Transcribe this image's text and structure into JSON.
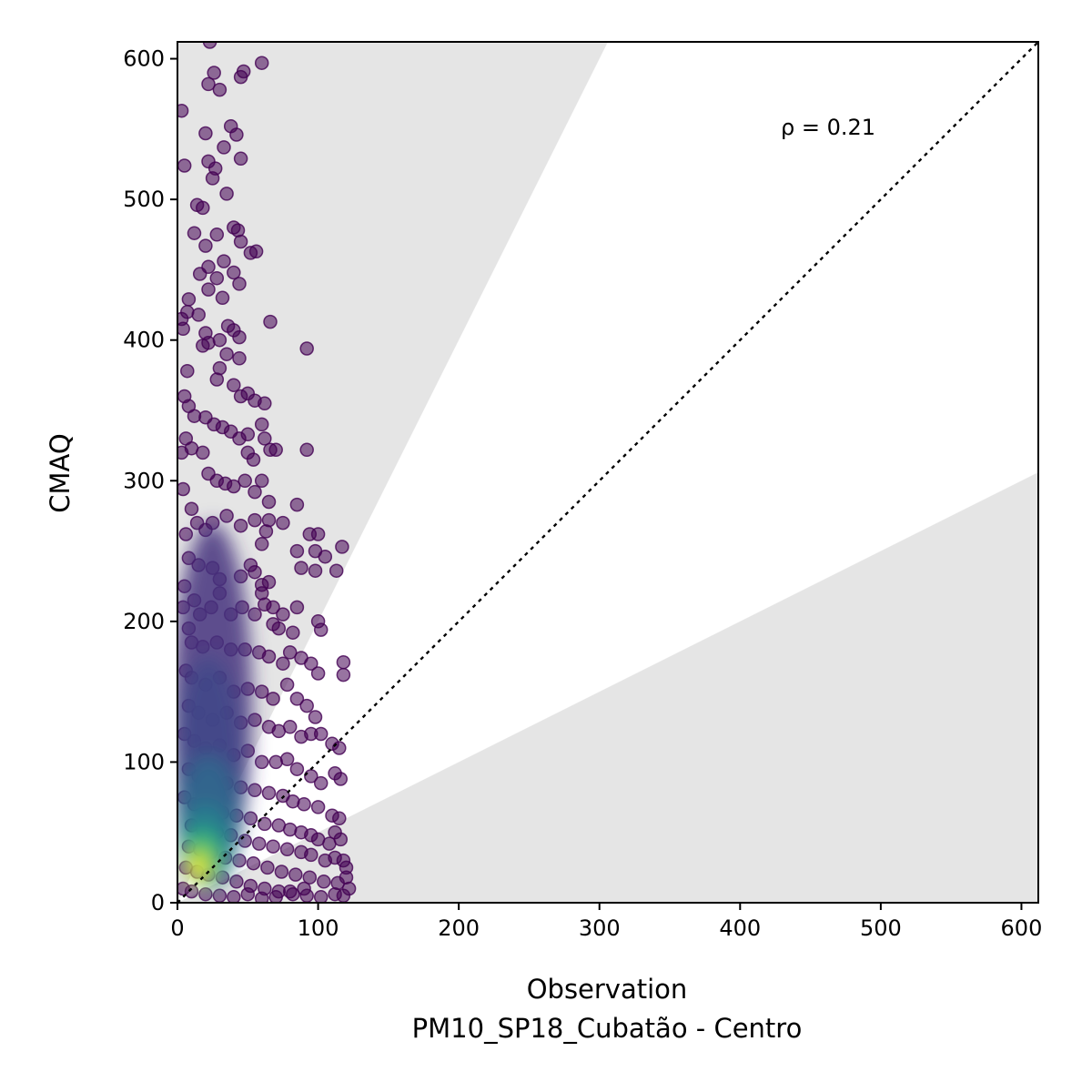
{
  "chart_data": {
    "type": "scatter",
    "title": "",
    "xlabel": "Observation",
    "xlabel_sub": "PM10_SP18_Cubatão - Centro",
    "ylabel": "CMAQ",
    "xlim": [
      0,
      612
    ],
    "ylim": [
      0,
      612
    ],
    "xticks": [
      0,
      100,
      200,
      300,
      400,
      500,
      600
    ],
    "yticks": [
      0,
      100,
      200,
      300,
      400,
      500,
      600
    ],
    "grid": false,
    "legend": "none",
    "annotation": "ρ = 0.21",
    "reference_line": {
      "type": "1:1",
      "style": "dotted",
      "color": "#000000"
    },
    "acceptance_band": {
      "upper_slope": 2.0,
      "lower_slope": 0.5,
      "fill_color": "#e5e5e5"
    },
    "colormap": "viridis",
    "colors": {
      "low_density": "#440154",
      "mid_density": "#3b528b",
      "high_density": "#21918c",
      "peak_density": "#fde725"
    },
    "points": [
      [
        3,
        563
      ],
      [
        5,
        524
      ],
      [
        23,
        612
      ],
      [
        26,
        590
      ],
      [
        22,
        582
      ],
      [
        30,
        578
      ],
      [
        45,
        587
      ],
      [
        47,
        591
      ],
      [
        60,
        597
      ],
      [
        20,
        547
      ],
      [
        38,
        552
      ],
      [
        42,
        546
      ],
      [
        45,
        529
      ],
      [
        22,
        527
      ],
      [
        27,
        522
      ],
      [
        25,
        515
      ],
      [
        33,
        537
      ],
      [
        35,
        504
      ],
      [
        14,
        496
      ],
      [
        18,
        494
      ],
      [
        12,
        476
      ],
      [
        20,
        467
      ],
      [
        28,
        475
      ],
      [
        40,
        480
      ],
      [
        43,
        478
      ],
      [
        45,
        470
      ],
      [
        52,
        462
      ],
      [
        56,
        463
      ],
      [
        33,
        456
      ],
      [
        22,
        452
      ],
      [
        16,
        447
      ],
      [
        28,
        444
      ],
      [
        40,
        448
      ],
      [
        44,
        440
      ],
      [
        32,
        430
      ],
      [
        22,
        436
      ],
      [
        8,
        429
      ],
      [
        7,
        420
      ],
      [
        15,
        418
      ],
      [
        3,
        415
      ],
      [
        4,
        408
      ],
      [
        20,
        405
      ],
      [
        30,
        400
      ],
      [
        36,
        410
      ],
      [
        40,
        407
      ],
      [
        44,
        402
      ],
      [
        22,
        398
      ],
      [
        18,
        396
      ],
      [
        66,
        413
      ],
      [
        92,
        394
      ],
      [
        7,
        378
      ],
      [
        30,
        380
      ],
      [
        28,
        372
      ],
      [
        40,
        368
      ],
      [
        45,
        360
      ],
      [
        50,
        362
      ],
      [
        55,
        357
      ],
      [
        62,
        355
      ],
      [
        35,
        390
      ],
      [
        44,
        387
      ],
      [
        5,
        360
      ],
      [
        8,
        353
      ],
      [
        12,
        346
      ],
      [
        20,
        345
      ],
      [
        26,
        340
      ],
      [
        32,
        338
      ],
      [
        38,
        335
      ],
      [
        44,
        330
      ],
      [
        50,
        333
      ],
      [
        60,
        340
      ],
      [
        62,
        330
      ],
      [
        50,
        320
      ],
      [
        54,
        315
      ],
      [
        66,
        322
      ],
      [
        70,
        322
      ],
      [
        92,
        322
      ],
      [
        6,
        330
      ],
      [
        10,
        323
      ],
      [
        18,
        320
      ],
      [
        22,
        305
      ],
      [
        28,
        300
      ],
      [
        34,
        298
      ],
      [
        40,
        296
      ],
      [
        48,
        300
      ],
      [
        55,
        292
      ],
      [
        60,
        300
      ],
      [
        3,
        320
      ],
      [
        4,
        294
      ],
      [
        10,
        280
      ],
      [
        14,
        270
      ],
      [
        6,
        262
      ],
      [
        20,
        265
      ],
      [
        25,
        270
      ],
      [
        35,
        275
      ],
      [
        45,
        268
      ],
      [
        55,
        272
      ],
      [
        65,
        272
      ],
      [
        65,
        285
      ],
      [
        60,
        255
      ],
      [
        63,
        264
      ],
      [
        75,
        270
      ],
      [
        85,
        283
      ],
      [
        94,
        262
      ],
      [
        100,
        262
      ],
      [
        98,
        250
      ],
      [
        85,
        250
      ],
      [
        88,
        238
      ],
      [
        98,
        236
      ],
      [
        105,
        246
      ],
      [
        113,
        236
      ],
      [
        117,
        253
      ],
      [
        8,
        245
      ],
      [
        15,
        240
      ],
      [
        25,
        238
      ],
      [
        30,
        230
      ],
      [
        45,
        232
      ],
      [
        52,
        240
      ],
      [
        55,
        235
      ],
      [
        60,
        226
      ],
      [
        65,
        228
      ],
      [
        5,
        225
      ],
      [
        4,
        210
      ],
      [
        12,
        215
      ],
      [
        16,
        205
      ],
      [
        24,
        210
      ],
      [
        30,
        220
      ],
      [
        38,
        205
      ],
      [
        46,
        210
      ],
      [
        55,
        205
      ],
      [
        60,
        220
      ],
      [
        68,
        210
      ],
      [
        75,
        205
      ],
      [
        62,
        212
      ],
      [
        68,
        198
      ],
      [
        72,
        195
      ],
      [
        82,
        192
      ],
      [
        85,
        210
      ],
      [
        100,
        200
      ],
      [
        102,
        194
      ],
      [
        8,
        195
      ],
      [
        10,
        185
      ],
      [
        18,
        182
      ],
      [
        28,
        185
      ],
      [
        38,
        180
      ],
      [
        48,
        180
      ],
      [
        58,
        178
      ],
      [
        65,
        175
      ],
      [
        75,
        170
      ],
      [
        80,
        178
      ],
      [
        88,
        174
      ],
      [
        95,
        170
      ],
      [
        100,
        163
      ],
      [
        118,
        171
      ],
      [
        118,
        162
      ],
      [
        6,
        165
      ],
      [
        10,
        160
      ],
      [
        20,
        155
      ],
      [
        30,
        160
      ],
      [
        40,
        150
      ],
      [
        50,
        152
      ],
      [
        60,
        150
      ],
      [
        68,
        145
      ],
      [
        78,
        155
      ],
      [
        85,
        145
      ],
      [
        92,
        140
      ],
      [
        98,
        132
      ],
      [
        8,
        140
      ],
      [
        15,
        135
      ],
      [
        25,
        130
      ],
      [
        35,
        135
      ],
      [
        45,
        128
      ],
      [
        55,
        130
      ],
      [
        65,
        125
      ],
      [
        72,
        122
      ],
      [
        80,
        125
      ],
      [
        88,
        118
      ],
      [
        95,
        120
      ],
      [
        102,
        120
      ],
      [
        110,
        113
      ],
      [
        115,
        110
      ],
      [
        5,
        120
      ],
      [
        12,
        115
      ],
      [
        20,
        110
      ],
      [
        30,
        112
      ],
      [
        40,
        105
      ],
      [
        50,
        108
      ],
      [
        60,
        100
      ],
      [
        70,
        100
      ],
      [
        78,
        102
      ],
      [
        85,
        95
      ],
      [
        95,
        90
      ],
      [
        102,
        85
      ],
      [
        112,
        92
      ],
      [
        116,
        88
      ],
      [
        8,
        95
      ],
      [
        15,
        90
      ],
      [
        25,
        88
      ],
      [
        35,
        85
      ],
      [
        45,
        82
      ],
      [
        55,
        80
      ],
      [
        65,
        78
      ],
      [
        75,
        76
      ],
      [
        82,
        72
      ],
      [
        90,
        70
      ],
      [
        100,
        68
      ],
      [
        110,
        62
      ],
      [
        115,
        60
      ],
      [
        5,
        75
      ],
      [
        12,
        70
      ],
      [
        22,
        68
      ],
      [
        32,
        64
      ],
      [
        42,
        62
      ],
      [
        52,
        60
      ],
      [
        62,
        56
      ],
      [
        72,
        55
      ],
      [
        80,
        52
      ],
      [
        88,
        50
      ],
      [
        95,
        48
      ],
      [
        100,
        45
      ],
      [
        108,
        42
      ],
      [
        112,
        50
      ],
      [
        116,
        45
      ],
      [
        10,
        55
      ],
      [
        18,
        52
      ],
      [
        28,
        50
      ],
      [
        38,
        48
      ],
      [
        48,
        44
      ],
      [
        58,
        42
      ],
      [
        68,
        40
      ],
      [
        78,
        38
      ],
      [
        88,
        36
      ],
      [
        95,
        34
      ],
      [
        105,
        30
      ],
      [
        112,
        32
      ],
      [
        118,
        30
      ],
      [
        120,
        25
      ],
      [
        8,
        40
      ],
      [
        16,
        38
      ],
      [
        24,
        36
      ],
      [
        34,
        32
      ],
      [
        44,
        30
      ],
      [
        54,
        28
      ],
      [
        64,
        25
      ],
      [
        74,
        22
      ],
      [
        84,
        20
      ],
      [
        94,
        18
      ],
      [
        104,
        15
      ],
      [
        114,
        14
      ],
      [
        120,
        18
      ],
      [
        122,
        10
      ],
      [
        6,
        25
      ],
      [
        14,
        22
      ],
      [
        22,
        20
      ],
      [
        32,
        18
      ],
      [
        42,
        15
      ],
      [
        52,
        12
      ],
      [
        62,
        10
      ],
      [
        72,
        8
      ],
      [
        82,
        6
      ],
      [
        92,
        5
      ],
      [
        102,
        4
      ],
      [
        112,
        6
      ],
      [
        118,
        5
      ],
      [
        4,
        10
      ],
      [
        10,
        8
      ],
      [
        20,
        6
      ],
      [
        30,
        5
      ],
      [
        40,
        4
      ],
      [
        50,
        6
      ],
      [
        60,
        3
      ],
      [
        70,
        4
      ],
      [
        80,
        8
      ],
      [
        90,
        10
      ]
    ],
    "density_clusters": [
      {
        "x": 25,
        "y": 140,
        "rx": 28,
        "ry": 130,
        "color": "#46327e",
        "opacity": 0.85
      },
      {
        "x": 22,
        "y": 95,
        "rx": 24,
        "ry": 80,
        "color": "#3e4a89",
        "opacity": 0.85
      },
      {
        "x": 22,
        "y": 60,
        "rx": 22,
        "ry": 45,
        "color": "#31688e",
        "opacity": 0.9
      },
      {
        "x": 20,
        "y": 40,
        "rx": 18,
        "ry": 30,
        "color": "#26828e",
        "opacity": 0.9
      },
      {
        "x": 18,
        "y": 32,
        "rx": 14,
        "ry": 20,
        "color": "#35b779",
        "opacity": 0.95
      },
      {
        "x": 16,
        "y": 27,
        "rx": 9,
        "ry": 14,
        "color": "#90d743",
        "opacity": 1.0
      },
      {
        "x": 15,
        "y": 25,
        "rx": 5,
        "ry": 8,
        "color": "#fde725",
        "opacity": 1.0
      }
    ]
  }
}
